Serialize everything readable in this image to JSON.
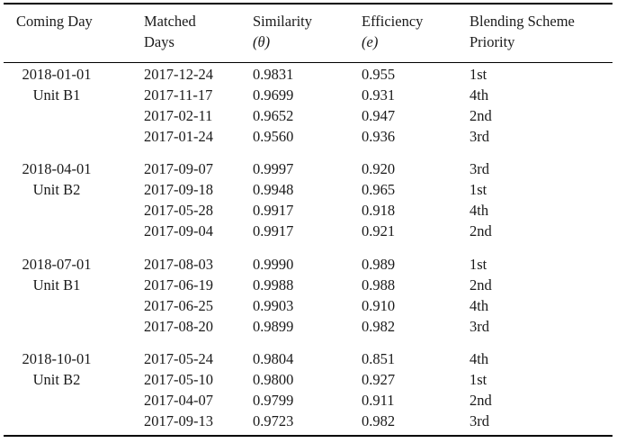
{
  "header": {
    "col1": "Coming Day",
    "col2_line1": "Matched",
    "col2_line2": "Days",
    "col3_line1": "Similarity",
    "col3_line2": "(θ)",
    "col4_line1": "Efficiency",
    "col4_line2": "(e)",
    "col5_line1": "Blending Scheme",
    "col5_line2": "Priority"
  },
  "groups": [
    {
      "day": "2018-01-01",
      "unit": "Unit B1",
      "rows": [
        {
          "matched": "2017-12-24",
          "similarity": "0.9831",
          "efficiency": "0.955",
          "priority": "1st"
        },
        {
          "matched": "2017-11-17",
          "similarity": "0.9699",
          "efficiency": "0.931",
          "priority": "4th"
        },
        {
          "matched": "2017-02-11",
          "similarity": "0.9652",
          "efficiency": "0.947",
          "priority": "2nd"
        },
        {
          "matched": "2017-01-24",
          "similarity": "0.9560",
          "efficiency": "0.936",
          "priority": "3rd"
        }
      ]
    },
    {
      "day": "2018-04-01",
      "unit": "Unit B2",
      "rows": [
        {
          "matched": "2017-09-07",
          "similarity": "0.9997",
          "efficiency": "0.920",
          "priority": "3rd"
        },
        {
          "matched": "2017-09-18",
          "similarity": "0.9948",
          "efficiency": "0.965",
          "priority": "1st"
        },
        {
          "matched": "2017-05-28",
          "similarity": "0.9917",
          "efficiency": "0.918",
          "priority": "4th"
        },
        {
          "matched": "2017-09-04",
          "similarity": "0.9917",
          "efficiency": "0.921",
          "priority": "2nd"
        }
      ]
    },
    {
      "day": "2018-07-01",
      "unit": "Unit B1",
      "rows": [
        {
          "matched": "2017-08-03",
          "similarity": "0.9990",
          "efficiency": "0.989",
          "priority": "1st"
        },
        {
          "matched": "2017-06-19",
          "similarity": "0.9988",
          "efficiency": "0.988",
          "priority": "2nd"
        },
        {
          "matched": "2017-06-25",
          "similarity": "0.9903",
          "efficiency": "0.910",
          "priority": "4th"
        },
        {
          "matched": "2017-08-20",
          "similarity": "0.9899",
          "efficiency": "0.982",
          "priority": "3rd"
        }
      ]
    },
    {
      "day": "2018-10-01",
      "unit": "Unit B2",
      "rows": [
        {
          "matched": "2017-05-24",
          "similarity": "0.9804",
          "efficiency": "0.851",
          "priority": "4th"
        },
        {
          "matched": "2017-05-10",
          "similarity": "0.9800",
          "efficiency": "0.927",
          "priority": "1st"
        },
        {
          "matched": "2017-04-07",
          "similarity": "0.9799",
          "efficiency": "0.911",
          "priority": "2nd"
        },
        {
          "matched": "2017-09-13",
          "similarity": "0.9723",
          "efficiency": "0.982",
          "priority": "3rd"
        }
      ]
    }
  ]
}
